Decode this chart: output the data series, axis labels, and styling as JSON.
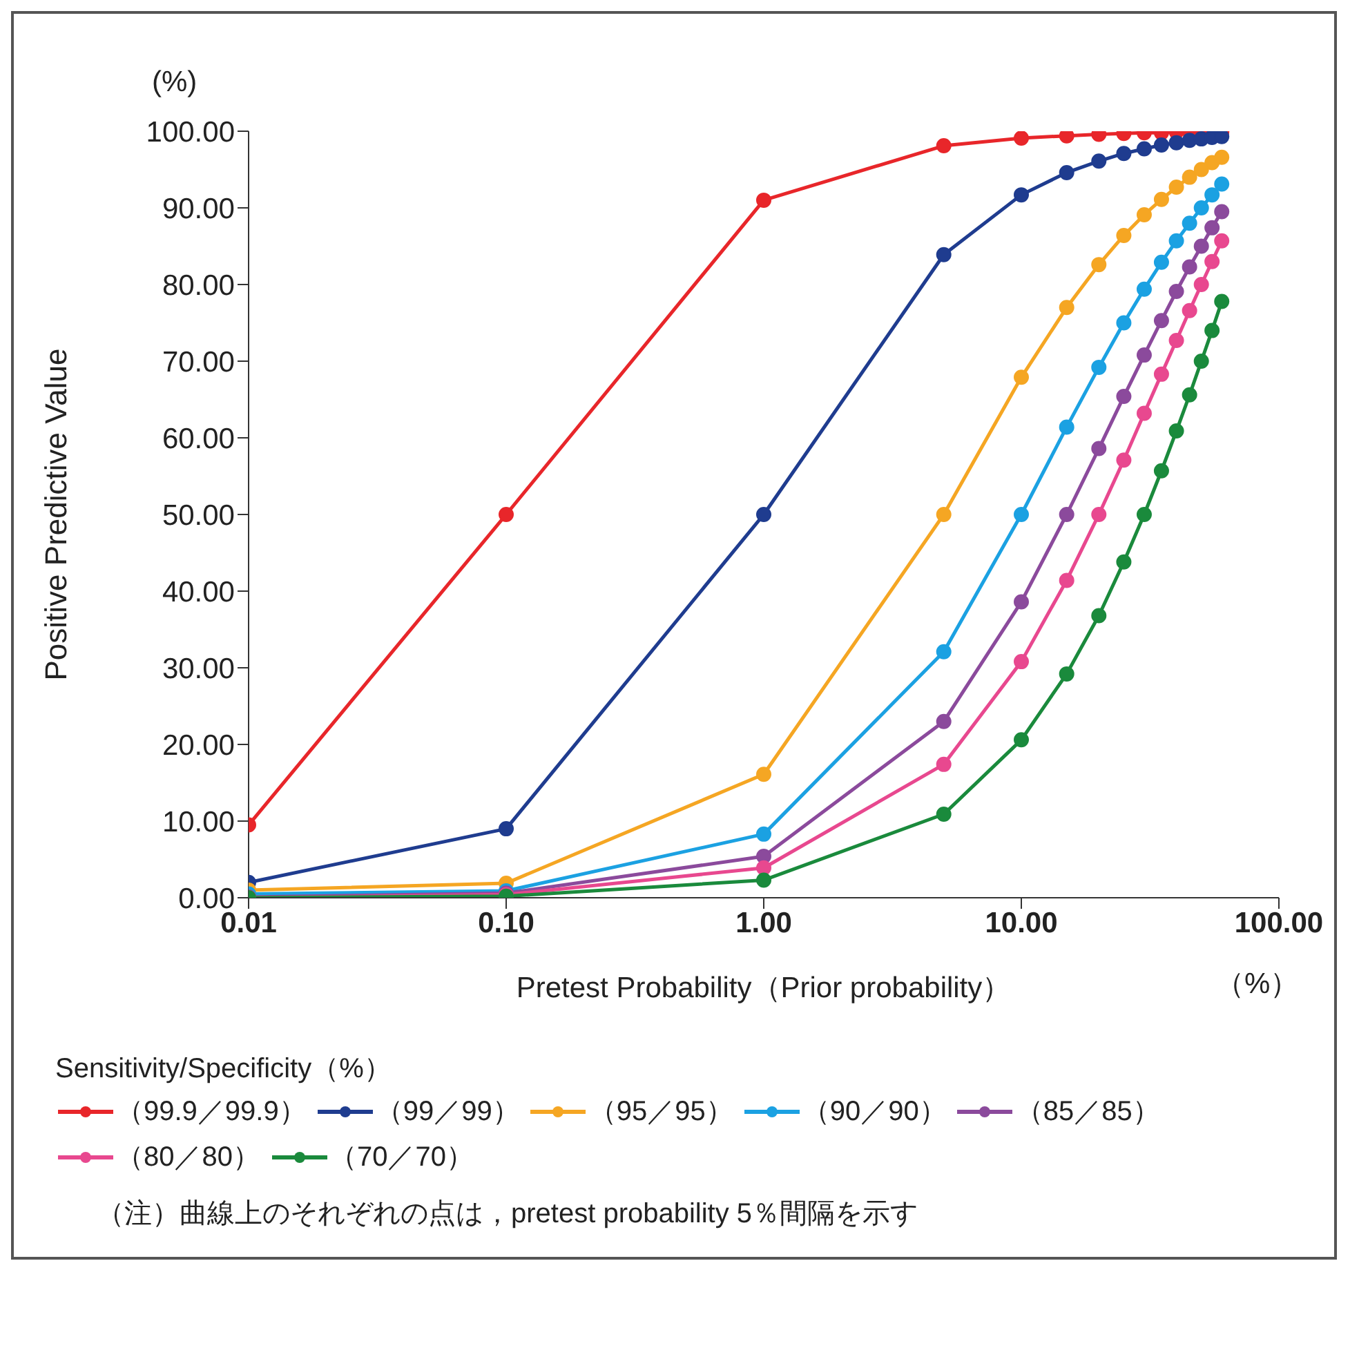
{
  "chart_data": {
    "type": "line",
    "xlabel": "Pretest Probability（Prior probability）",
    "ylabel": "Positive Predictive Value",
    "legend_title": "Sensitivity/Specificity（%）",
    "annotations": [
      "(%)",
      "（%）",
      "（注）曲線上のそれぞれの点は，pretest probability 5％間隔を示す"
    ],
    "x": [
      0.01,
      0.1,
      1,
      5,
      10,
      15,
      20,
      25,
      30,
      35,
      40,
      45,
      50,
      55,
      60
    ],
    "series": [
      {
        "name": "（99.9／99.9）",
        "color": "#e8262a",
        "values": [
          9.5,
          50.0,
          91.0,
          98.1,
          99.1,
          99.4,
          99.6,
          99.7,
          99.8,
          99.8,
          99.9,
          99.9,
          99.9,
          99.9,
          99.9
        ]
      },
      {
        "name": "（99／99）",
        "color": "#1f3c8f",
        "values": [
          2.0,
          9.0,
          50.0,
          83.9,
          91.7,
          94.6,
          96.1,
          97.1,
          97.7,
          98.2,
          98.5,
          98.8,
          99.0,
          99.2,
          99.3
        ]
      },
      {
        "name": "（95／95）",
        "color": "#f5a623",
        "values": [
          1.0,
          1.9,
          16.1,
          50.0,
          67.9,
          77.0,
          82.6,
          86.4,
          89.1,
          91.1,
          92.7,
          94.0,
          95.0,
          95.9,
          96.6
        ]
      },
      {
        "name": "（90／90）",
        "color": "#1ba1e2",
        "values": [
          0.5,
          0.9,
          8.3,
          32.1,
          50.0,
          61.4,
          69.2,
          75.0,
          79.4,
          82.9,
          85.7,
          88.0,
          90.0,
          91.7,
          93.1
        ]
      },
      {
        "name": "（85／85）",
        "color": "#8b4a9c",
        "values": [
          0.1,
          0.6,
          5.4,
          23.0,
          38.6,
          50.0,
          58.6,
          65.4,
          70.8,
          75.3,
          79.1,
          82.3,
          85.0,
          87.4,
          89.5
        ]
      },
      {
        "name": "（80／80）",
        "color": "#e8488f",
        "values": [
          0.0,
          0.4,
          3.9,
          17.4,
          30.8,
          41.4,
          50.0,
          57.1,
          63.2,
          68.3,
          72.7,
          76.6,
          80.0,
          83.0,
          85.7
        ]
      },
      {
        "name": "（70／70）",
        "color": "#1a8a3c",
        "values": [
          0.0,
          0.2,
          2.3,
          10.9,
          20.6,
          29.2,
          36.8,
          43.8,
          50.0,
          55.7,
          60.9,
          65.6,
          70.0,
          74.0,
          77.8
        ]
      }
    ],
    "log": "x",
    "xlim": [
      0.01,
      100
    ],
    "xticks": [
      {
        "value": 0.01,
        "label": "0.01"
      },
      {
        "value": 0.1,
        "label": "0.10"
      },
      {
        "value": 1,
        "label": "1.00"
      },
      {
        "value": 10,
        "label": "10.00"
      },
      {
        "value": 100,
        "label": "100.00"
      }
    ],
    "ylim": [
      0,
      100
    ],
    "yticks": [
      {
        "value": 0,
        "label": "0.00"
      },
      {
        "value": 10,
        "label": "10.00"
      },
      {
        "value": 20,
        "label": "20.00"
      },
      {
        "value": 30,
        "label": "30.00"
      },
      {
        "value": 40,
        "label": "40.00"
      },
      {
        "value": 50,
        "label": "50.00"
      },
      {
        "value": 60,
        "label": "60.00"
      },
      {
        "value": 70,
        "label": "70.00"
      },
      {
        "value": 80,
        "label": "80.00"
      },
      {
        "value": 90,
        "label": "90.00"
      },
      {
        "value": 100,
        "label": "100.00"
      }
    ],
    "grid": false,
    "legend": "bottom",
    "marker": "circle",
    "line_style": "solid"
  }
}
